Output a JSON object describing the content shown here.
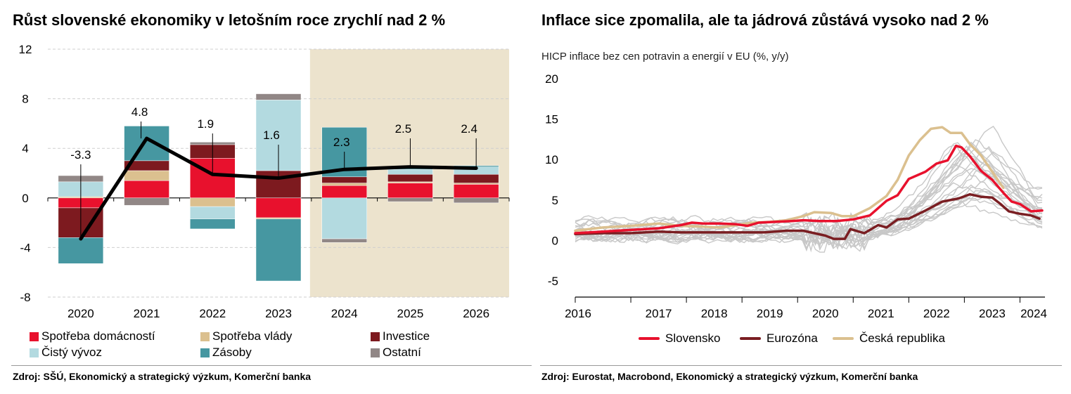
{
  "left": {
    "title": "Růst slovenské ekonomiky v letošním roce zrychlí nad 2 %",
    "source": "Zdroj: SŠÚ, Ekonomický a strategický výzkum, Komerční banka"
  },
  "right": {
    "title": "Inflace sice zpomalila, ale ta jádrová zůstává vysoko nad 2 %",
    "subtitle": "HICP inflace bez cen potravin a energií v EU (%, y/y)",
    "source": "Zdroj: Eurostat, Macrobond, Ekonomický a strategický výzkum, Komerční banka"
  },
  "chart_data": [
    {
      "type": "bar",
      "stacked": true,
      "categories": [
        "2020",
        "2021",
        "2022",
        "2023",
        "2024",
        "2025",
        "2026"
      ],
      "forecast_from": "2024",
      "forecast_shade_color": "#ece3cd",
      "ylim": [
        -8,
        12
      ],
      "yticks": [
        -8,
        -4,
        0,
        4,
        8,
        12
      ],
      "series": [
        {
          "name": "Spotřeba domácností",
          "color": "#e8112d",
          "values": [
            -0.8,
            1.4,
            3.2,
            -1.6,
            1.0,
            1.2,
            1.1
          ]
        },
        {
          "name": "Spotřeba vlády",
          "color": "#dbc08f",
          "values": [
            0.1,
            0.8,
            -0.7,
            -0.1,
            0.2,
            0.1,
            0.1
          ]
        },
        {
          "name": "Investice",
          "color": "#7d1a1f",
          "values": [
            -2.4,
            0.8,
            1.1,
            2.2,
            0.5,
            0.6,
            0.7
          ]
        },
        {
          "name": "Čistý vývoz",
          "color": "#b3dae0",
          "values": [
            1.2,
            0.0,
            -1.0,
            5.7,
            -3.3,
            0.4,
            0.6
          ]
        },
        {
          "name": "Zásoby",
          "color": "#4697a1",
          "values": [
            -2.1,
            2.8,
            -0.8,
            -5.0,
            4.0,
            0.1,
            0.1
          ]
        },
        {
          "name": "Ostatní",
          "color": "#918786",
          "values": [
            0.5,
            -0.6,
            0.2,
            0.5,
            -0.3,
            -0.3,
            -0.4
          ]
        }
      ],
      "line": {
        "color": "#000000",
        "values": [
          -3.3,
          4.8,
          1.9,
          1.6,
          2.3,
          2.5,
          2.4
        ],
        "labels": [
          "-3.3",
          "4.8",
          "1.9",
          "1.6",
          "2.3",
          "2.5",
          "2.4"
        ]
      }
    },
    {
      "type": "line",
      "x_ticks": [
        "2016",
        "2017",
        "2018",
        "2019",
        "2020",
        "2021",
        "2022",
        "2023",
        "2024"
      ],
      "x_start": 2016.0,
      "x_end": 2024.45,
      "ylim": [
        -7,
        20
      ],
      "yticks": [
        -5,
        0,
        5,
        10,
        15,
        20
      ],
      "grey_color": "#c8c8c8",
      "series": [
        {
          "name": "Slovensko",
          "color": "#e8112d",
          "points": [
            [
              2016.0,
              0.9
            ],
            [
              2016.5,
              1.1
            ],
            [
              2017.0,
              1.3
            ],
            [
              2017.5,
              1.5
            ],
            [
              2017.9,
              1.9
            ],
            [
              2018.1,
              2.2
            ],
            [
              2018.3,
              2.1
            ],
            [
              2018.6,
              2.1
            ],
            [
              2018.9,
              2.0
            ],
            [
              2019.1,
              1.8
            ],
            [
              2019.3,
              2.2
            ],
            [
              2019.6,
              2.3
            ],
            [
              2019.9,
              2.4
            ],
            [
              2020.1,
              2.5
            ],
            [
              2020.4,
              2.4
            ],
            [
              2020.7,
              2.4
            ],
            [
              2021.0,
              2.6
            ],
            [
              2021.3,
              3.1
            ],
            [
              2021.6,
              4.9
            ],
            [
              2021.8,
              5.6
            ],
            [
              2022.0,
              7.6
            ],
            [
              2022.3,
              8.5
            ],
            [
              2022.5,
              9.5
            ],
            [
              2022.7,
              9.9
            ],
            [
              2022.85,
              11.7
            ],
            [
              2022.95,
              11.5
            ],
            [
              2023.1,
              10.4
            ],
            [
              2023.3,
              8.6
            ],
            [
              2023.5,
              7.5
            ],
            [
              2023.7,
              5.9
            ],
            [
              2023.85,
              4.8
            ],
            [
              2024.0,
              4.5
            ],
            [
              2024.2,
              3.6
            ],
            [
              2024.4,
              3.7
            ]
          ]
        },
        {
          "name": "Eurozóna",
          "color": "#7a1e22",
          "points": [
            [
              2016.0,
              0.8
            ],
            [
              2016.5,
              0.9
            ],
            [
              2017.0,
              0.9
            ],
            [
              2017.5,
              1.1
            ],
            [
              2017.9,
              1.0
            ],
            [
              2018.3,
              1.0
            ],
            [
              2018.7,
              1.0
            ],
            [
              2019.0,
              1.0
            ],
            [
              2019.4,
              1.0
            ],
            [
              2019.8,
              1.2
            ],
            [
              2020.1,
              1.2
            ],
            [
              2020.3,
              0.9
            ],
            [
              2020.5,
              0.6
            ],
            [
              2020.65,
              0.2
            ],
            [
              2020.85,
              0.2
            ],
            [
              2020.95,
              1.4
            ],
            [
              2021.2,
              0.9
            ],
            [
              2021.45,
              1.9
            ],
            [
              2021.6,
              1.6
            ],
            [
              2021.8,
              2.6
            ],
            [
              2022.0,
              2.7
            ],
            [
              2022.3,
              3.7
            ],
            [
              2022.6,
              4.8
            ],
            [
              2022.9,
              5.2
            ],
            [
              2023.1,
              5.7
            ],
            [
              2023.3,
              5.4
            ],
            [
              2023.5,
              5.3
            ],
            [
              2023.65,
              4.5
            ],
            [
              2023.8,
              3.6
            ],
            [
              2024.0,
              3.3
            ],
            [
              2024.2,
              3.1
            ],
            [
              2024.35,
              2.7
            ]
          ]
        },
        {
          "name": "Česká republika",
          "color": "#dbc08f",
          "points": [
            [
              2016.0,
              1.2
            ],
            [
              2016.5,
              1.6
            ],
            [
              2017.0,
              1.8
            ],
            [
              2017.5,
              2.1
            ],
            [
              2017.9,
              1.8
            ],
            [
              2018.3,
              1.7
            ],
            [
              2018.6,
              1.6
            ],
            [
              2018.9,
              1.9
            ],
            [
              2019.2,
              2.2
            ],
            [
              2019.5,
              2.3
            ],
            [
              2019.8,
              2.5
            ],
            [
              2020.1,
              3.0
            ],
            [
              2020.3,
              3.5
            ],
            [
              2020.6,
              3.4
            ],
            [
              2020.8,
              3.0
            ],
            [
              2021.0,
              3.0
            ],
            [
              2021.3,
              4.0
            ],
            [
              2021.6,
              5.5
            ],
            [
              2021.8,
              7.5
            ],
            [
              2022.0,
              10.5
            ],
            [
              2022.2,
              12.4
            ],
            [
              2022.4,
              13.8
            ],
            [
              2022.6,
              14.0
            ],
            [
              2022.75,
              13.3
            ],
            [
              2022.95,
              13.3
            ],
            [
              2023.1,
              11.9
            ],
            [
              2023.3,
              10.5
            ],
            [
              2023.5,
              8.5
            ],
            [
              2023.7,
              6.5
            ]
          ]
        }
      ]
    }
  ],
  "left_legend": [
    {
      "label": "Spotřeba domácností",
      "color": "#e8112d"
    },
    {
      "label": "Spotřeba vlády",
      "color": "#dbc08f"
    },
    {
      "label": "Investice",
      "color": "#7d1a1f"
    },
    {
      "label": "Čistý vývoz",
      "color": "#b3dae0"
    },
    {
      "label": "Zásoby",
      "color": "#4697a1"
    },
    {
      "label": "Ostatní",
      "color": "#918786"
    }
  ],
  "right_legend": [
    {
      "label": "Slovensko",
      "color": "#e8112d"
    },
    {
      "label": "Eurozóna",
      "color": "#7a1e22"
    },
    {
      "label": "Česká republika",
      "color": "#dbc08f"
    }
  ]
}
